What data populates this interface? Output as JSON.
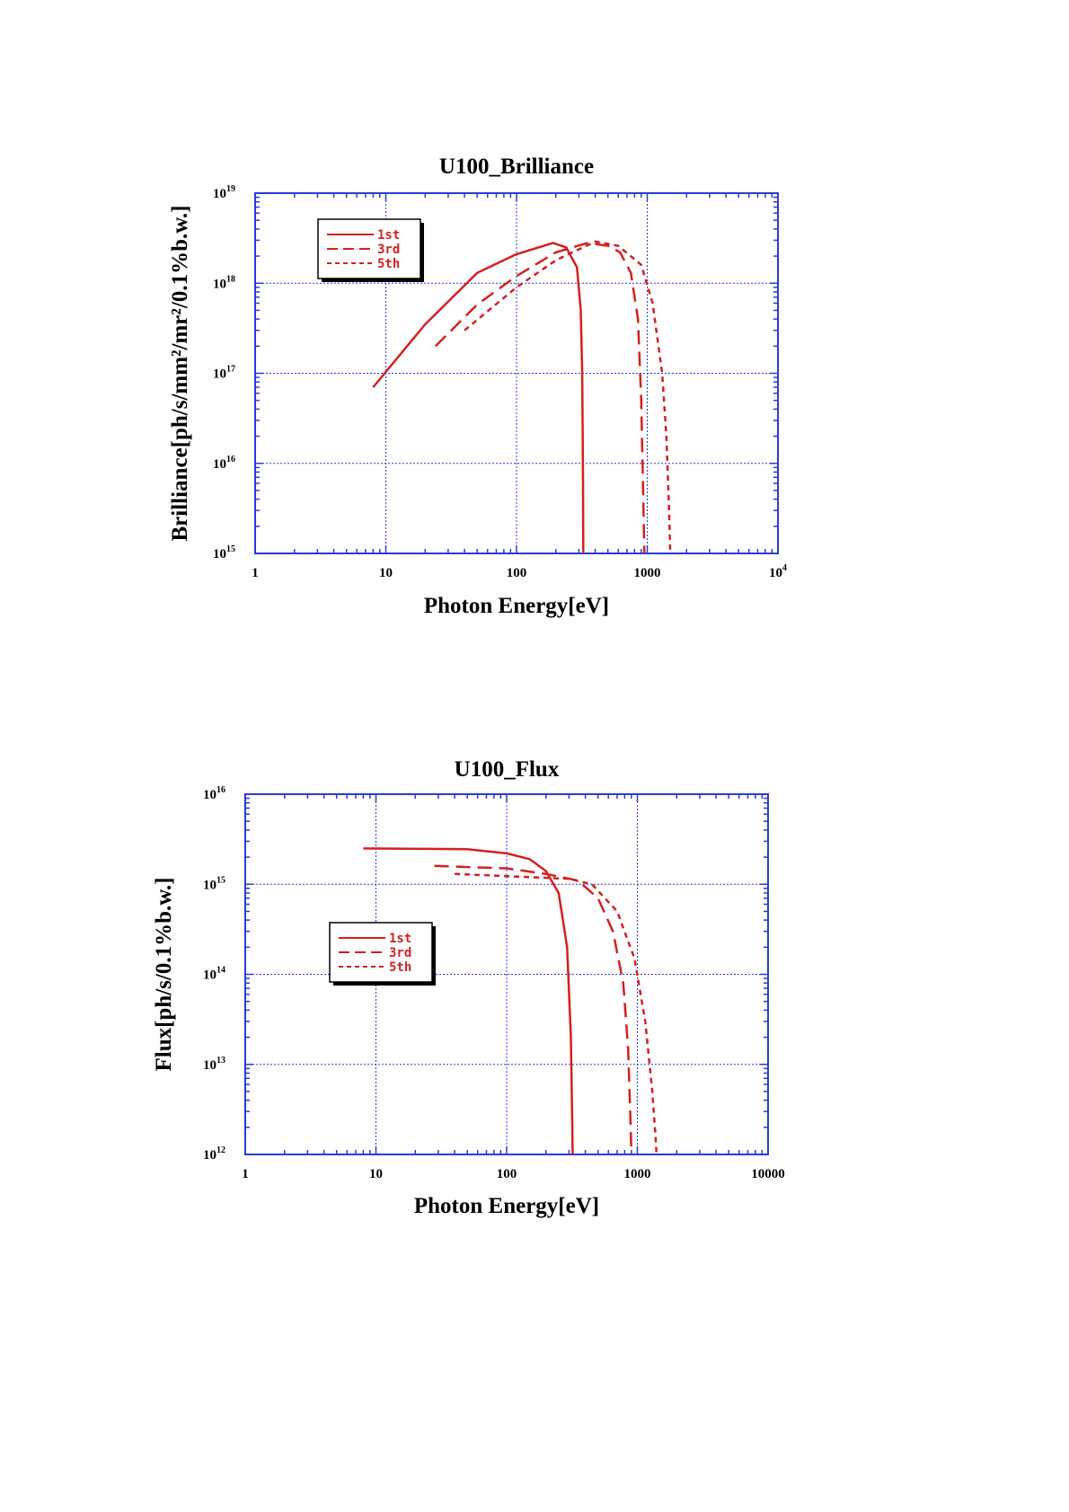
{
  "chart_data": [
    {
      "type": "line",
      "title": "U100_Brilliance",
      "xlabel": "Photon Energy[eV]",
      "ylabel": "Brilliance[ph/s/mm²/mr²/0.1%b.w.]",
      "x_scale": "log",
      "y_scale": "log",
      "xlim": [
        1,
        10000
      ],
      "ylim": [
        1000000000000000.0,
        1e+19
      ],
      "x_tick_labels": [
        {
          "base": "1",
          "sup": ""
        },
        {
          "base": "10",
          "sup": ""
        },
        {
          "base": "100",
          "sup": ""
        },
        {
          "base": "1000",
          "sup": ""
        },
        {
          "base": "10",
          "sup": "4"
        }
      ],
      "y_tick_labels": [
        {
          "base": "10",
          "sup": "15"
        },
        {
          "base": "10",
          "sup": "16"
        },
        {
          "base": "10",
          "sup": "17"
        },
        {
          "base": "10",
          "sup": "18"
        },
        {
          "base": "10",
          "sup": "19"
        }
      ],
      "grid": true,
      "legend_position": "top-left",
      "colors": {
        "series": "#d42020",
        "axes": "#2a3adb",
        "grid": "#2a3adb"
      },
      "series": [
        {
          "name": "1st",
          "style": "solid",
          "points": [
            [
              8.0,
              7e+16
            ],
            [
              20,
              3.5e+17
            ],
            [
              50,
              1.3e+18
            ],
            [
              100,
              2.1e+18
            ],
            [
              190,
              2.8e+18
            ],
            [
              240,
              2.5e+18
            ],
            [
              290,
              1.5e+18
            ],
            [
              310,
              5e+17
            ],
            [
              318,
              1e+17
            ],
            [
              322,
              1e+16
            ],
            [
              324,
              1000000000000000.0
            ]
          ]
        },
        {
          "name": "3rd",
          "style": "dashed",
          "points": [
            [
              24,
              2e+17
            ],
            [
              50,
              5.8e+17
            ],
            [
              100,
              1.2e+18
            ],
            [
              200,
              2.2e+18
            ],
            [
              350,
              2.8e+18
            ],
            [
              500,
              2.6e+18
            ],
            [
              620,
              2.2e+18
            ],
            [
              750,
              1.3e+18
            ],
            [
              850,
              4e+17
            ],
            [
              900,
              5e+16
            ],
            [
              930,
              5000000000000000.0
            ],
            [
              950,
              1000000000000000.0
            ]
          ]
        },
        {
          "name": "5th",
          "style": "short-dash",
          "points": [
            [
              40,
              3e+17
            ],
            [
              100,
              9e+17
            ],
            [
              200,
              1.8e+18
            ],
            [
              400,
              2.9e+18
            ],
            [
              600,
              2.6e+18
            ],
            [
              900,
              1.6e+18
            ],
            [
              1100,
              6e+17
            ],
            [
              1300,
              1e+17
            ],
            [
              1400,
              2e+16
            ],
            [
              1470,
              3000000000000000.0
            ],
            [
              1500,
              1000000000000000.0
            ]
          ]
        }
      ]
    },
    {
      "type": "line",
      "title": "U100_Flux",
      "xlabel": "Photon Energy[eV]",
      "ylabel": "Flux[ph/s/0.1%b.w.]",
      "x_scale": "log",
      "y_scale": "log",
      "xlim": [
        1,
        10000
      ],
      "ylim": [
        1000000000000.0,
        1e+16
      ],
      "x_tick_labels": [
        {
          "base": "1",
          "sup": ""
        },
        {
          "base": "10",
          "sup": ""
        },
        {
          "base": "100",
          "sup": ""
        },
        {
          "base": "1000",
          "sup": ""
        },
        {
          "base": "10000",
          "sup": ""
        }
      ],
      "y_tick_labels": [
        {
          "base": "10",
          "sup": "12"
        },
        {
          "base": "10",
          "sup": "13"
        },
        {
          "base": "10",
          "sup": "14"
        },
        {
          "base": "10",
          "sup": "15"
        },
        {
          "base": "10",
          "sup": "16"
        }
      ],
      "grid": true,
      "legend_position": "center-left",
      "colors": {
        "series": "#d42020",
        "axes": "#2a3adb",
        "grid": "#2a3adb"
      },
      "series": [
        {
          "name": "1st",
          "style": "solid",
          "points": [
            [
              8,
              2500000000000000.0
            ],
            [
              50,
              2450000000000000.0
            ],
            [
              100,
              2200000000000000.0
            ],
            [
              150,
              1900000000000000.0
            ],
            [
              200,
              1400000000000000.0
            ],
            [
              250,
              800000000000000.0
            ],
            [
              290,
              200000000000000.0
            ],
            [
              310,
              20000000000000.0
            ],
            [
              318,
              2000000000000.0
            ],
            [
              320,
              1000000000000.0
            ]
          ]
        },
        {
          "name": "3rd",
          "style": "dashed",
          "points": [
            [
              28,
              1600000000000000.0
            ],
            [
              100,
              1500000000000000.0
            ],
            [
              200,
              1300000000000000.0
            ],
            [
              350,
              1100000000000000.0
            ],
            [
              500,
              700000000000000.0
            ],
            [
              650,
              300000000000000.0
            ],
            [
              780,
              80000000000000.0
            ],
            [
              850,
              15000000000000.0
            ],
            [
              890,
              2000000000000.0
            ],
            [
              900,
              1000000000000.0
            ]
          ]
        },
        {
          "name": "5th",
          "style": "short-dash",
          "points": [
            [
              40,
              1300000000000000.0
            ],
            [
              150,
              1200000000000000.0
            ],
            [
              300,
              1150000000000000.0
            ],
            [
              450,
              1000000000000000.0
            ],
            [
              700,
              500000000000000.0
            ],
            [
              950,
              150000000000000.0
            ],
            [
              1150,
              30000000000000.0
            ],
            [
              1300,
              5000000000000.0
            ],
            [
              1380,
              1500000000000.0
            ],
            [
              1400,
              1000000000000.0
            ]
          ]
        }
      ]
    }
  ]
}
